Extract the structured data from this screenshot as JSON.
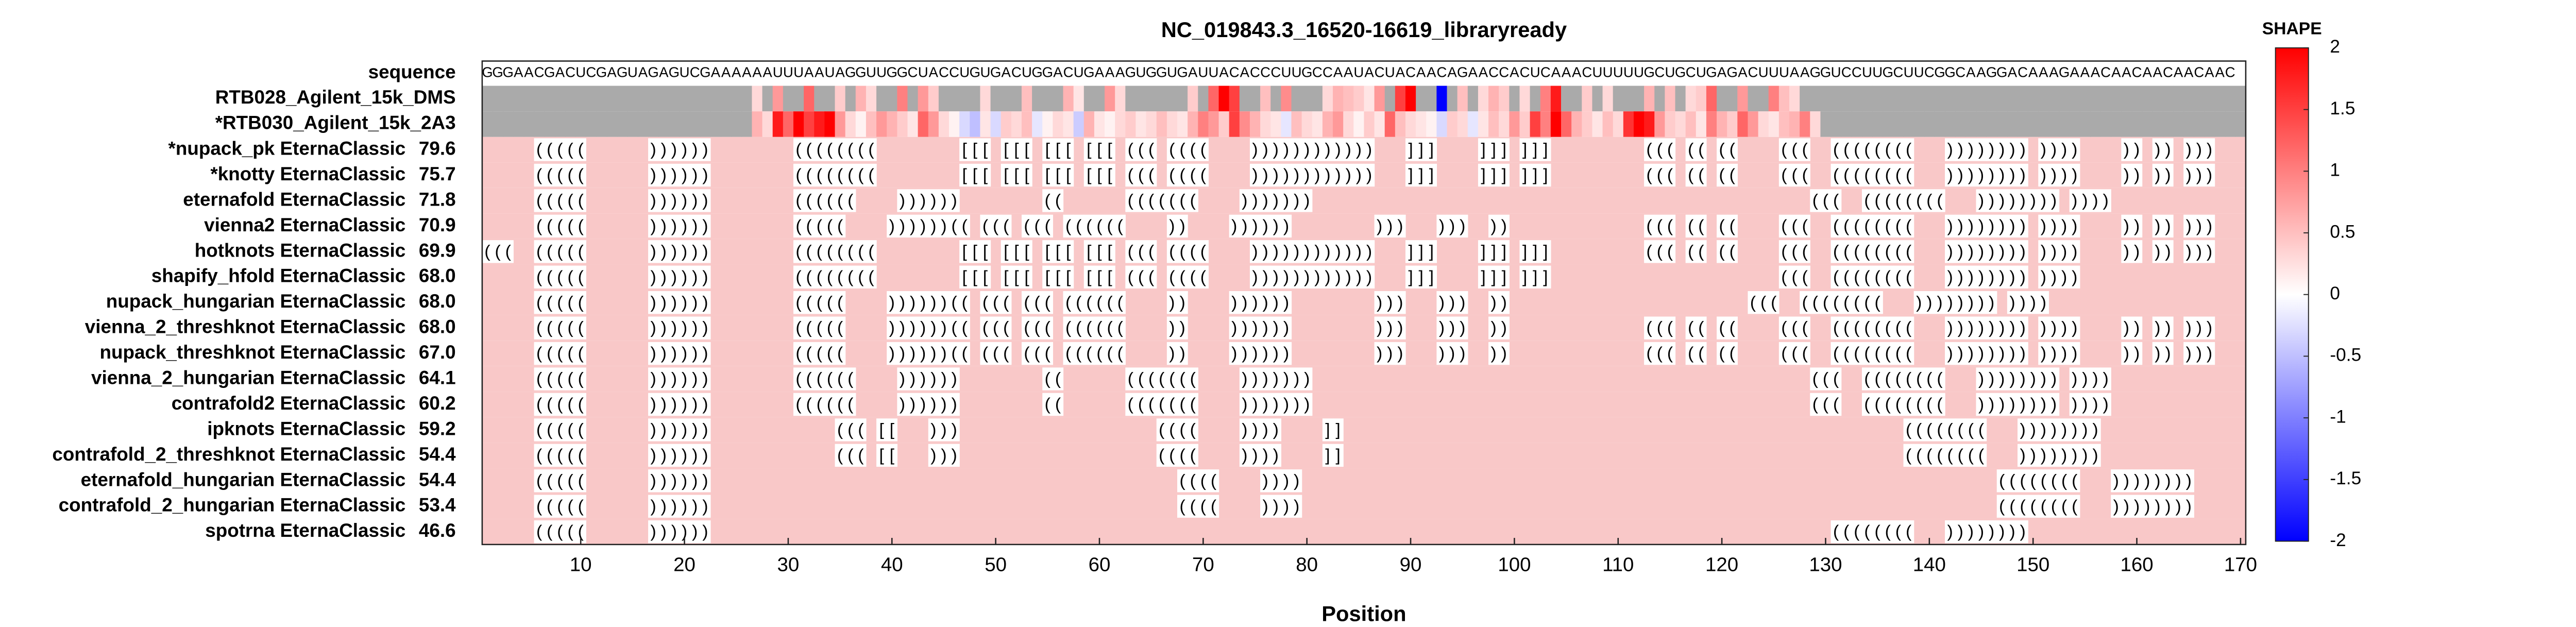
{
  "chart_data": {
    "type": "heatmap",
    "title": "NC_019843.3_16520-16619_libraryready",
    "xlabel": "Position",
    "xlim": [
      0.5,
      170.5
    ],
    "xticks": [
      10,
      20,
      30,
      40,
      50,
      60,
      70,
      80,
      90,
      100,
      110,
      120,
      130,
      140,
      150,
      160,
      170
    ],
    "sequence_label": "sequence",
    "sequence": "GGGAACGACUCGAGUAGAGUCGAAAAAAUUUAAUAGGUUGGCUACCUGUGACUGGACUGAAAGUGGUGAUUACACCCUUGCCAAUACUACAACAGAACCACUCAAACUUUUUGCUGCUGAGACUUUAAGGUCCUUGCUUCGGCAAGGACAAAGAAACAACAACAACAAC",
    "null_color": "#aaaaaa",
    "unpaired_color": "#f9c8c8",
    "reactivity": [
      {
        "name": "RTB028_Agilent_15k_DMS",
        "values": [
          null,
          null,
          null,
          null,
          null,
          null,
          null,
          null,
          null,
          null,
          null,
          null,
          null,
          null,
          null,
          null,
          null,
          null,
          null,
          null,
          null,
          null,
          null,
          null,
          null,
          null,
          0.3,
          null,
          0.8,
          null,
          null,
          1.2,
          null,
          null,
          0.4,
          null,
          0.6,
          0.3,
          null,
          null,
          1.0,
          null,
          0.8,
          0.4,
          null,
          null,
          null,
          null,
          0.3,
          null,
          null,
          null,
          0.5,
          null,
          null,
          null,
          0.6,
          0.2,
          null,
          null,
          0.8,
          0.3,
          null,
          null,
          null,
          null,
          null,
          null,
          0.4,
          null,
          1.2,
          2,
          1.5,
          null,
          null,
          0.5,
          null,
          0.9,
          null,
          null,
          null,
          0.3,
          0.6,
          0.5,
          0.4,
          0.2,
          0.8,
          null,
          1.5,
          2,
          null,
          null,
          -2,
          null,
          0.5,
          null,
          0.3,
          0.6,
          0.4,
          null,
          0.3,
          null,
          1.0,
          1.8,
          null,
          null,
          0.4,
          null,
          0.3,
          null,
          null,
          null,
          0.6,
          null,
          0.5,
          null,
          0.3,
          0.4,
          1.2,
          null,
          null,
          0.8,
          null,
          null,
          1.0,
          0.5,
          0.3,
          null,
          null,
          null,
          null,
          null,
          null,
          null,
          null,
          null,
          null,
          null,
          null,
          null,
          null,
          null,
          null,
          null,
          null,
          null,
          null,
          null,
          null,
          null,
          null,
          null,
          null,
          null,
          null,
          null,
          null,
          null,
          null,
          null,
          null,
          null,
          null,
          null,
          null,
          null,
          null,
          null,
          null,
          null
        ]
      },
      {
        "name": "*RTB030_Agilent_15k_2A3",
        "values": [
          null,
          null,
          null,
          null,
          null,
          null,
          null,
          null,
          null,
          null,
          null,
          null,
          null,
          null,
          null,
          null,
          null,
          null,
          null,
          null,
          null,
          null,
          null,
          null,
          null,
          null,
          0.6,
          0.3,
          1.8,
          1.2,
          2,
          1.5,
          1.8,
          2,
          0.8,
          0.3,
          0.1,
          0.5,
          0.8,
          0.6,
          0.4,
          0.2,
          1.2,
          0.8,
          0.3,
          0.1,
          -0.3,
          -0.5,
          0.2,
          -0.3,
          0.4,
          0.3,
          0.5,
          -0.2,
          0.1,
          0.3,
          0.2,
          -0.4,
          0.6,
          0.2,
          0.1,
          0.3,
          0.4,
          0.2,
          0.3,
          0.5,
          0.3,
          0.2,
          0.6,
          1.0,
          0.8,
          0.4,
          1.5,
          0.9,
          0.6,
          0.3,
          0.2,
          -0.2,
          0.5,
          0.3,
          0.2,
          0.6,
          0.8,
          0.3,
          0.1,
          0.4,
          0.2,
          1.2,
          0.5,
          0.3,
          0.2,
          0.1,
          -0.3,
          0.4,
          0.3,
          -0.2,
          0.2,
          0.5,
          0.3,
          0.8,
          0.4,
          1.5,
          1.0,
          2,
          1.2,
          0.6,
          0.4,
          0.2,
          0.5,
          0.3,
          1.6,
          2,
          1.8,
          0.8,
          0.4,
          0.3,
          0.5,
          0.2,
          1.0,
          0.6,
          0.4,
          1.2,
          0.8,
          0.3,
          0.2,
          0.5,
          0.6,
          1.0,
          0.3,
          null,
          null,
          null,
          null,
          null,
          null,
          null,
          null,
          null,
          null,
          null,
          null,
          null,
          null,
          null,
          null,
          null,
          null,
          null,
          null,
          null,
          null,
          null,
          null,
          null,
          null,
          null,
          null,
          null,
          null,
          null,
          null,
          null,
          null,
          null,
          null,
          null,
          null,
          null,
          null,
          null
        ]
      }
    ],
    "structures": [
      {
        "name": "*nupack_pk EternaClassic",
        "score": "79.6",
        "structure": ".....(((((......))))))........((((((((........[[[.[[[.[[[.[[[.(((.((((....))))))))))))...]]]....]]].]]].........(((.((.((....(((..((((((((...)))))))).))))....)).)).)))..."
      },
      {
        "name": "*knotty EternaClassic",
        "score": "75.7",
        "structure": ".....(((((......))))))........((((((((........[[[.[[[.[[[.[[[.(((.((((....))))))))))))...]]]....]]].]]].........(((.((.((....(((..((((((((...)))))))).))))....)).)).)))..."
      },
      {
        "name": "eternafold EternaClassic",
        "score": "71.8",
        "structure": ".....(((((......))))))........((((((....))))))........((......(((((((....)))))))................................................(((..((((((((...)))))))).))))................"
      },
      {
        "name": "vienna2 EternaClassic",
        "score": "70.9",
        "structure": ".....(((((......))))))........(((((....))))))((.(((.(((.((((((....))....))))))........)))...)))..)).............(((.((.((....(((..((((((((...)))))))).))))....)).)).)))..."
      },
      {
        "name": "hotknots EternaClassic",
        "score": "69.9",
        "structure": "(((..(((((......))))))........((((((((........[[[.[[[.[[[.[[[.(((.((((....))))))))))))...]]]....]]].]]].........(((.((.((....(((..((((((((...)))))))).))))....)).)).)))..."
      },
      {
        "name": "shapify_hfold EternaClassic",
        "score": "68.0",
        "structure": ".....(((((......))))))........((((((((........[[[.[[[.[[[.[[[.(((.((((....))))))))))))...]]]....]]].]]]......................(((..((((((((...)))))))).))))................"
      },
      {
        "name": "nupack_hungarian EternaClassic",
        "score": "68.0",
        "structure": ".....(((((......))))))........(((((....))))))((.(((.(((.((((((....))....))))))........)))...)))..)).......................(((..((((((((...)))))))).))))................"
      },
      {
        "name": "vienna_2_threshknot EternaClassic",
        "score": "68.0",
        "structure": ".....(((((......))))))........(((((....))))))((.(((.(((.((((((....))....))))))........)))...)))..)).............(((.((.((....(((..((((((((...)))))))).))))....)).)).)))..."
      },
      {
        "name": "nupack_threshknot EternaClassic",
        "score": "67.0",
        "structure": ".....(((((......))))))........(((((....))))))((.(((.(((.((((((....))....))))))........)))...)))..)).............(((.((.((....(((..((((((((...)))))))).))))....)).)).)))..."
      },
      {
        "name": "vienna_2_hungarian EternaClassic",
        "score": "64.1",
        "structure": ".....(((((......))))))........((((((....))))))........((......(((((((....)))))))................................................(((..((((((((...)))))))).))))................"
      },
      {
        "name": "contrafold2 EternaClassic",
        "score": "60.2",
        "structure": ".....(((((......))))))........((((((....))))))........((......(((((((....)))))))................................................(((..((((((((...)))))))).))))................"
      },
      {
        "name": "ipknots EternaClassic",
        "score": "59.2",
        "structure": ".....(((((......))))))............(((.[[...)))...................((((....))))....]]......................................................((((((((...)))))))).............................."
      },
      {
        "name": "contrafold_2_threshknot EternaClassic",
        "score": "54.4",
        "structure": ".....(((((......))))))............(((.[[...)))...................((((....))))....]]......................................................((((((((...)))))))).............................."
      },
      {
        "name": "eternafold_hungarian EternaClassic",
        "score": "54.4",
        "structure": ".....(((((......)))))).............................................((((....))))...................................................................((((((((...)))))))).............................."
      },
      {
        "name": "contrafold_2_hungarian EternaClassic",
        "score": "53.4",
        "structure": ".....(((((......)))))).............................................((((....))))...................................................................((((((((...)))))))).............................."
      },
      {
        "name": "spotrna EternaClassic",
        "score": "46.6",
        "structure": ".....(((((......))))))............................................................................................................((((((((...)))))))).............................."
      }
    ],
    "colorbar": {
      "title": "SHAPE",
      "clim": [
        -2,
        2
      ],
      "ticks": [
        -2,
        -1.5,
        -1,
        -0.5,
        0,
        0.5,
        1,
        1.5,
        2
      ],
      "colors": [
        "#0000ff",
        "#ffffff",
        "#ff0000"
      ]
    }
  }
}
